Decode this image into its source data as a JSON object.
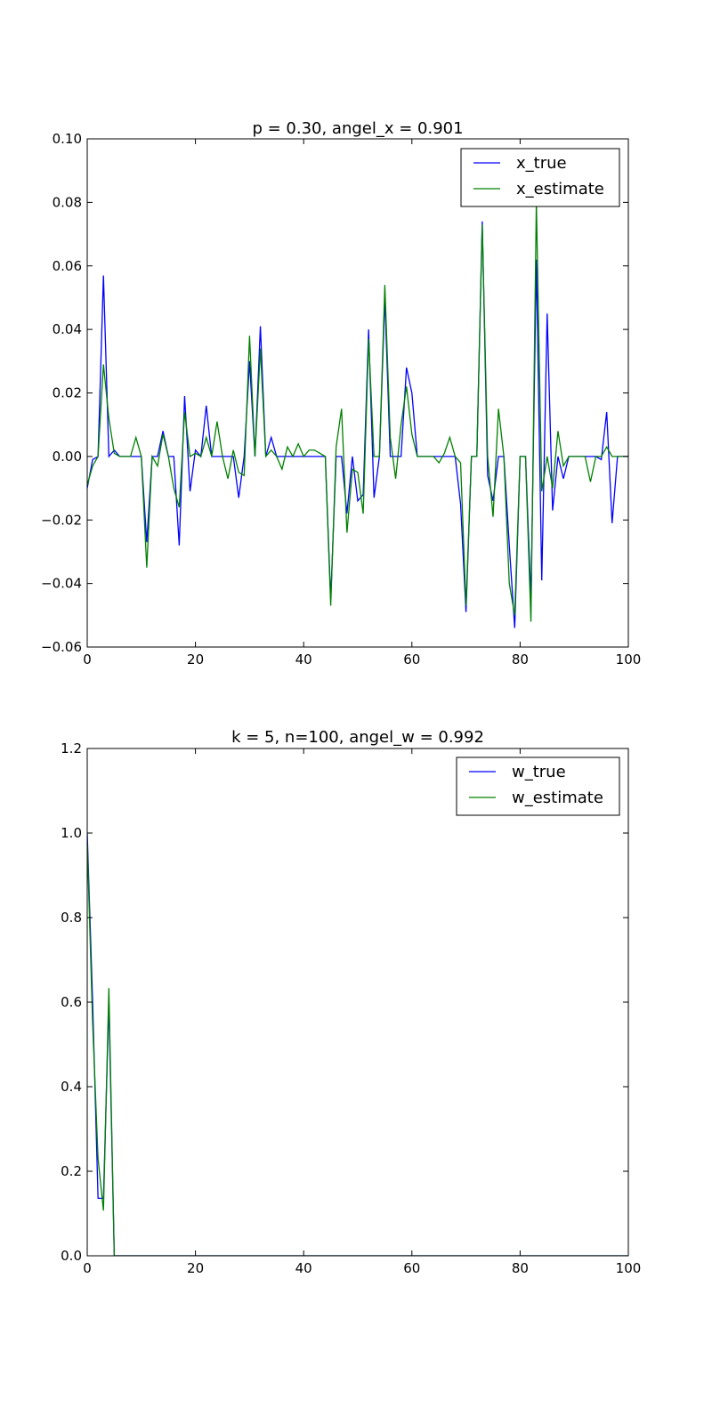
{
  "chart_data": [
    {
      "type": "line",
      "title": "p = 0.30, angel_x = 0.901",
      "xlim": [
        0,
        100
      ],
      "ylim": [
        -0.06,
        0.1
      ],
      "x_ticks": [
        "0",
        "20",
        "40",
        "60",
        "80",
        "100"
      ],
      "y_ticks": [
        "0.10",
        "0.08",
        "0.06",
        "0.04",
        "0.02",
        "0.00",
        "−0.02",
        "−0.04",
        "−0.06"
      ],
      "x_tick_values": [
        0,
        20,
        40,
        60,
        80,
        100
      ],
      "y_tick_values": [
        0.1,
        0.08,
        0.06,
        0.04,
        0.02,
        0.0,
        -0.02,
        -0.04,
        -0.06
      ],
      "legend": "top-right",
      "grid": false,
      "series": [
        {
          "name": "x_true",
          "color": "#0000ff",
          "values": [
            -0.01,
            -0.001,
            0.0,
            0.057,
            0.0,
            0.002,
            0.0,
            0.0,
            0.0,
            0.0,
            0.0,
            -0.027,
            0.0,
            0.0,
            0.008,
            0.0,
            0.0,
            -0.028,
            0.019,
            -0.011,
            0.002,
            0.0,
            0.016,
            0.0,
            0.0,
            0.0,
            0.0,
            0.0,
            -0.013,
            0.0,
            0.03,
            0.0,
            0.041,
            0.0,
            0.006,
            0.0,
            0.0,
            0.0,
            0.0,
            0.0,
            0.0,
            0.0,
            0.0,
            0.0,
            0.0,
            -0.045,
            0.0,
            0.0,
            -0.018,
            0.0,
            -0.014,
            -0.012,
            0.04,
            -0.013,
            0.0,
            0.05,
            0.0,
            0.0,
            0.0,
            0.028,
            0.02,
            0.0,
            0.0,
            0.0,
            0.0,
            0.0,
            0.0,
            0.0,
            0.0,
            -0.015,
            -0.049,
            0.0,
            0.0,
            0.074,
            -0.006,
            -0.014,
            0.0,
            0.0,
            -0.028,
            -0.054,
            0.0,
            0.0,
            -0.045,
            0.062,
            -0.039,
            0.045,
            -0.017,
            0.0,
            -0.007,
            0.0,
            0.0,
            0.0,
            0.0,
            0.0,
            0.0,
            -0.001,
            0.014,
            -0.021,
            0.0,
            0.0,
            0.0
          ]
        },
        {
          "name": "x_estimate",
          "color": "#008000",
          "values": [
            -0.009,
            -0.003,
            0.0,
            0.029,
            0.012,
            0.001,
            0.0,
            0.0,
            0.0,
            0.006,
            0.0,
            -0.035,
            0.0,
            -0.003,
            0.007,
            0.0,
            -0.01,
            -0.016,
            0.014,
            0.0,
            0.001,
            0.0,
            0.006,
            0.0,
            0.011,
            0.0,
            -0.007,
            0.002,
            -0.005,
            -0.006,
            0.038,
            0.0,
            0.034,
            0.0,
            0.002,
            0.0,
            -0.004,
            0.003,
            0.0,
            0.004,
            0.0,
            0.002,
            0.002,
            0.001,
            0.0,
            -0.047,
            0.003,
            0.015,
            -0.024,
            -0.004,
            -0.005,
            -0.018,
            0.037,
            0.0,
            0.0,
            0.054,
            0.006,
            -0.007,
            0.01,
            0.022,
            0.007,
            0.0,
            0.0,
            0.0,
            0.0,
            -0.002,
            0.001,
            0.006,
            0.0,
            -0.002,
            -0.047,
            0.0,
            0.0,
            0.073,
            0.0,
            -0.019,
            0.015,
            0.0,
            -0.04,
            -0.05,
            0.0,
            0.0,
            -0.052,
            0.08,
            -0.011,
            0.0,
            -0.01,
            0.008,
            -0.003,
            0.0,
            0.0,
            0.0,
            0.0,
            -0.008,
            0.0,
            0.0,
            0.003,
            0.0,
            0.0,
            0.0,
            0.0
          ]
        }
      ]
    },
    {
      "type": "line",
      "title": "k = 5, n=100, angel_w = 0.992",
      "xlim": [
        0,
        100
      ],
      "ylim": [
        0.0,
        1.2
      ],
      "x_ticks": [
        "0",
        "20",
        "40",
        "60",
        "80",
        "100"
      ],
      "y_ticks": [
        "1.2",
        "1.0",
        "0.8",
        "0.6",
        "0.4",
        "0.2",
        "0.0"
      ],
      "x_tick_values": [
        0,
        20,
        40,
        60,
        80,
        100
      ],
      "y_tick_values": [
        1.2,
        1.0,
        0.8,
        0.6,
        0.4,
        0.2,
        0.0
      ],
      "legend": "top-right",
      "grid": false,
      "series": [
        {
          "name": "w_true",
          "color": "#0000ff",
          "x": [
            0,
            1,
            2,
            3,
            4,
            5,
            100
          ],
          "values": [
            1.0,
            0.6,
            0.136,
            0.136,
            0.6,
            0.0,
            0.0
          ]
        },
        {
          "name": "w_estimate",
          "color": "#008000",
          "x": [
            0,
            1,
            2,
            3,
            4,
            5,
            100
          ],
          "values": [
            0.98,
            0.55,
            0.23,
            0.107,
            0.633,
            0.0,
            0.0
          ]
        }
      ]
    }
  ]
}
